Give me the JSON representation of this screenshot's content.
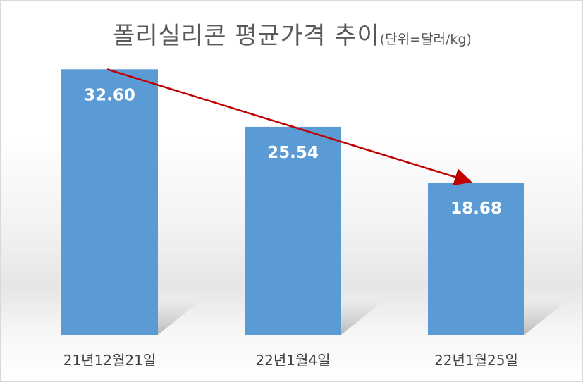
{
  "chart_data": {
    "type": "bar",
    "title": "폴리실리콘 평균가격 추이",
    "subtitle": "(단위=달러/kg)",
    "categories": [
      "21년12월21일",
      "22년1월4일",
      "22년1월25일"
    ],
    "values": [
      32.6,
      25.54,
      18.68
    ],
    "value_labels": [
      "32.60",
      "25.54",
      "18.68"
    ],
    "ylim": [
      0,
      36
    ],
    "grid": false,
    "legend": "none",
    "bar_color": "#5b9bd5",
    "trend_arrow_color": "#c00000",
    "annotation": "downward trend arrow from first bar to last bar"
  }
}
